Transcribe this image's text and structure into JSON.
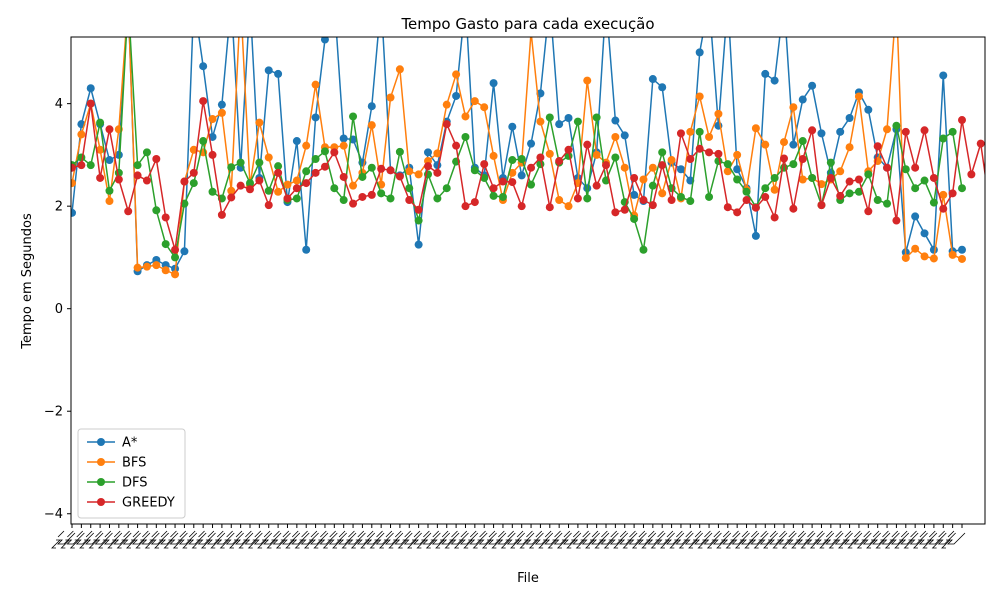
{
  "chart_data": {
    "type": "line",
    "title": "Tempo Gasto para cada execução",
    "xlabel": "File",
    "ylabel": "Tempo em Segundos",
    "ylim": [
      -4.2,
      5.3
    ],
    "yticks": [
      -4,
      -2,
      0,
      2,
      4
    ],
    "grid": false,
    "legend_position": "lower-left",
    "x_tick_labels_illegible": true,
    "series": [
      {
        "name": "A*",
        "color": "#1f77b4",
        "values": [
          1.87,
          3.6,
          4.3,
          3.6,
          2.9,
          3.0,
          6.0,
          0.73,
          0.85,
          0.95,
          0.85,
          0.78,
          1.12,
          6.0,
          4.73,
          3.35,
          3.98,
          6.0,
          2.75,
          6.0,
          2.55,
          4.65,
          4.58,
          2.08,
          3.27,
          1.15,
          3.73,
          5.25,
          6.0,
          3.32,
          3.3,
          2.85,
          3.95,
          6.0,
          2.7,
          2.6,
          2.75,
          1.25,
          3.05,
          2.8,
          3.65,
          4.15,
          6.0,
          2.75,
          2.6,
          4.4,
          2.55,
          3.55,
          2.6,
          3.22,
          4.2,
          6.0,
          3.6,
          3.72,
          2.55,
          2.35,
          3.05,
          6.0,
          3.67,
          3.38,
          2.22,
          2.1,
          4.48,
          4.32,
          2.85,
          2.72,
          2.5,
          5.0,
          6.0,
          3.57,
          6.0,
          2.72,
          2.35,
          1.42,
          4.58,
          4.45,
          6.0,
          3.2,
          4.08,
          4.35,
          3.42,
          2.65,
          3.45,
          3.72,
          4.22,
          3.88,
          2.95,
          2.75,
          3.5,
          1.1,
          1.8,
          1.47,
          1.15,
          4.55,
          1.12,
          1.15
        ]
      },
      {
        "name": "BFS",
        "color": "#ff7f0e",
        "values": [
          2.45,
          3.4,
          4.0,
          3.1,
          2.1,
          3.5,
          6.0,
          0.8,
          0.82,
          0.85,
          0.75,
          0.67,
          2.48,
          3.1,
          3.05,
          3.7,
          3.82,
          2.3,
          6.0,
          2.4,
          3.63,
          2.95,
          2.28,
          2.42,
          2.5,
          3.18,
          4.37,
          3.15,
          3.15,
          3.18,
          2.4,
          2.65,
          3.58,
          2.42,
          4.12,
          4.67,
          2.68,
          2.62,
          2.88,
          3.03,
          3.98,
          4.57,
          3.75,
          4.05,
          3.93,
          2.98,
          2.12,
          2.65,
          2.85,
          5.4,
          3.65,
          3.02,
          2.12,
          2.0,
          2.45,
          4.45,
          3.0,
          2.85,
          3.35,
          2.75,
          1.82,
          2.52,
          2.75,
          2.25,
          2.9,
          2.15,
          3.45,
          4.14,
          3.35,
          3.8,
          2.68,
          3.0,
          2.32,
          3.52,
          3.2,
          2.32,
          3.25,
          3.93,
          2.52,
          2.55,
          2.43,
          2.52,
          2.68,
          3.15,
          4.14,
          2.68,
          2.88,
          3.5,
          6.0,
          0.99,
          1.17,
          1.02,
          0.98,
          2.22,
          1.05,
          0.97
        ]
      },
      {
        "name": "DFS",
        "color": "#2ca02c",
        "values": [
          2.8,
          2.95,
          2.8,
          3.63,
          2.3,
          2.65,
          6.0,
          2.8,
          3.05,
          1.92,
          1.26,
          1.0,
          2.05,
          2.45,
          3.27,
          2.28,
          2.15,
          2.76,
          2.85,
          2.45,
          2.85,
          2.3,
          2.78,
          2.12,
          2.15,
          2.68,
          2.92,
          3.07,
          2.35,
          2.12,
          3.75,
          2.57,
          2.75,
          2.25,
          2.15,
          3.06,
          2.35,
          1.72,
          2.62,
          2.15,
          2.35,
          2.87,
          3.35,
          2.7,
          2.55,
          2.2,
          2.18,
          2.9,
          2.92,
          2.42,
          2.82,
          3.73,
          2.85,
          2.98,
          3.65,
          2.15,
          3.73,
          2.5,
          2.95,
          2.08,
          1.75,
          1.15,
          2.4,
          3.05,
          2.35,
          2.18,
          2.1,
          3.45,
          2.18,
          2.88,
          2.82,
          2.52,
          2.28,
          1.98,
          2.35,
          2.55,
          2.75,
          2.82,
          3.27,
          2.55,
          2.02,
          2.85,
          2.12,
          2.25,
          2.28,
          2.62,
          2.12,
          2.05,
          3.57,
          2.72,
          2.35,
          2.5,
          2.07,
          3.32,
          3.45,
          2.35
        ]
      },
      {
        "name": "GREEDY",
        "color": "#d62728",
        "values": [
          2.75,
          2.8,
          4.0,
          2.55,
          3.5,
          2.52,
          1.9,
          2.6,
          2.5,
          2.92,
          1.78,
          1.15,
          2.48,
          2.65,
          4.05,
          3.0,
          1.83,
          2.17,
          2.4,
          2.33,
          2.5,
          2.02,
          2.65,
          2.15,
          2.35,
          2.45,
          2.65,
          2.77,
          3.05,
          2.57,
          2.05,
          2.18,
          2.22,
          2.73,
          2.7,
          2.58,
          2.12,
          1.93,
          2.78,
          2.65,
          3.6,
          3.18,
          2.0,
          2.08,
          2.82,
          2.35,
          2.48,
          2.47,
          2.0,
          2.75,
          2.95,
          1.98,
          2.88,
          3.1,
          2.15,
          3.2,
          2.4,
          2.8,
          1.88,
          1.93,
          2.55,
          2.12,
          2.02,
          2.8,
          2.12,
          3.42,
          2.92,
          3.12,
          3.05,
          3.02,
          1.98,
          1.88,
          2.12,
          1.97,
          2.18,
          1.78,
          2.93,
          1.95,
          2.92,
          3.48,
          2.02,
          2.55,
          2.2,
          2.48,
          2.52,
          1.9,
          3.17,
          2.75,
          1.72,
          3.45,
          2.75,
          3.48,
          2.55,
          1.95,
          2.25,
          3.68,
          2.62,
          3.22,
          1.95
        ]
      }
    ]
  }
}
